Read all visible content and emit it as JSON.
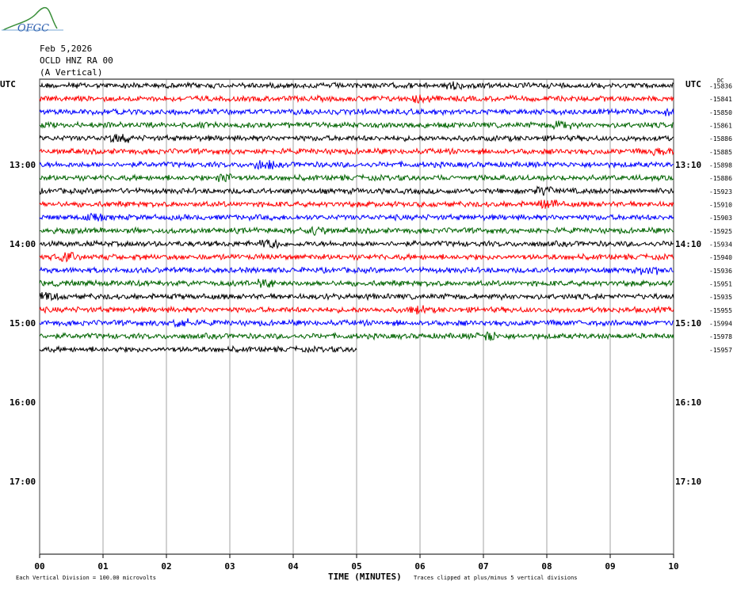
{
  "logo": "OFGC",
  "header": {
    "date": "Feb 5,2026",
    "station": "OCLD HNZ RA 00",
    "component": "(A Vertical)"
  },
  "left_axis": {
    "label": "UTC",
    "hours": [
      "13:00",
      "14:00",
      "15:00",
      "16:00",
      "17:00"
    ]
  },
  "right_axis": {
    "label": "UTC",
    "hours": [
      "13:10",
      "14:10",
      "15:10",
      "16:10",
      "17:10"
    ]
  },
  "offset_label": "DC",
  "offsets": [
    -15836,
    -15841,
    -15850,
    -15861,
    -15886,
    -15885,
    -15898,
    -15886,
    -15923,
    -15910,
    -15903,
    -15925,
    -15934,
    -15940,
    -15936,
    -15951,
    -15935,
    -15955,
    -15994,
    -15978,
    -15957
  ],
  "trace_colors": [
    "#000000",
    "#ff0000",
    "#0000ff",
    "#006400"
  ],
  "x_axis": {
    "ticks": [
      "00",
      "01",
      "02",
      "03",
      "04",
      "05",
      "06",
      "07",
      "08",
      "09",
      "10"
    ],
    "label": "TIME (MINUTES)"
  },
  "footer": {
    "scale": "Each Vertical Division =  100.00 microvolts",
    "clip": "Traces clipped at plus/minus 5 vertical divisions"
  }
}
